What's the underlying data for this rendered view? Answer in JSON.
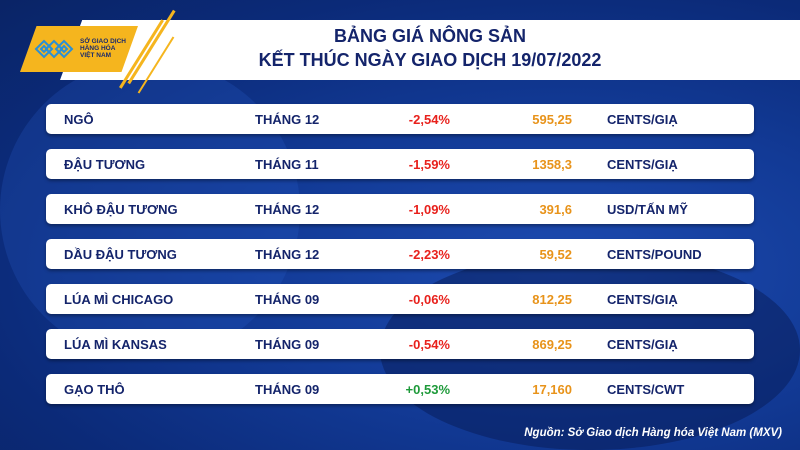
{
  "logo": {
    "lines": [
      "SỞ GIAO DỊCH",
      "HÀNG HÓA",
      "VIỆT NAM"
    ]
  },
  "header": {
    "title_line1": "BẢNG GIÁ NÔNG SẢN",
    "title_line2": "KẾT THÚC NGÀY GIAO DỊCH 19/07/2022"
  },
  "rows": [
    {
      "name": "NGÔ",
      "month": "THÁNG 12",
      "change": "-2,54%",
      "price": "595,25",
      "unit": "CENTS/GIẠ"
    },
    {
      "name": "ĐẬU TƯƠNG",
      "month": "THÁNG 11",
      "change": "-1,59%",
      "price": "1358,3",
      "unit": "CENTS/GIẠ"
    },
    {
      "name": "KHÔ ĐẬU TƯƠNG",
      "month": "THÁNG 12",
      "change": "-1,09%",
      "price": "391,6",
      "unit": "USD/TẤN MỸ"
    },
    {
      "name": "DẦU ĐẬU TƯƠNG",
      "month": "THÁNG 12",
      "change": "-2,23%",
      "price": "59,52",
      "unit": "CENTS/POUND"
    },
    {
      "name": "LÚA MÌ CHICAGO",
      "month": "THÁNG 09",
      "change": "-0,06%",
      "price": "812,25",
      "unit": "CENTS/GIẠ"
    },
    {
      "name": "LÚA MÌ KANSAS",
      "month": "THÁNG 09",
      "change": "-0,54%",
      "price": "869,25",
      "unit": "CENTS/GIẠ"
    },
    {
      "name": "GẠO THÔ",
      "month": "THÁNG 09",
      "change": "+0,53%",
      "price": "17,160",
      "unit": "CENTS/CWT"
    }
  ],
  "source": "Nguồn: Sở Giao dịch Hàng hóa Việt Nam (MXV)",
  "colors": {
    "negative": "#e8211c",
    "positive": "#1e9a3a",
    "price": "#e8931a",
    "text": "#14246b",
    "accent": "#f5b51e"
  }
}
